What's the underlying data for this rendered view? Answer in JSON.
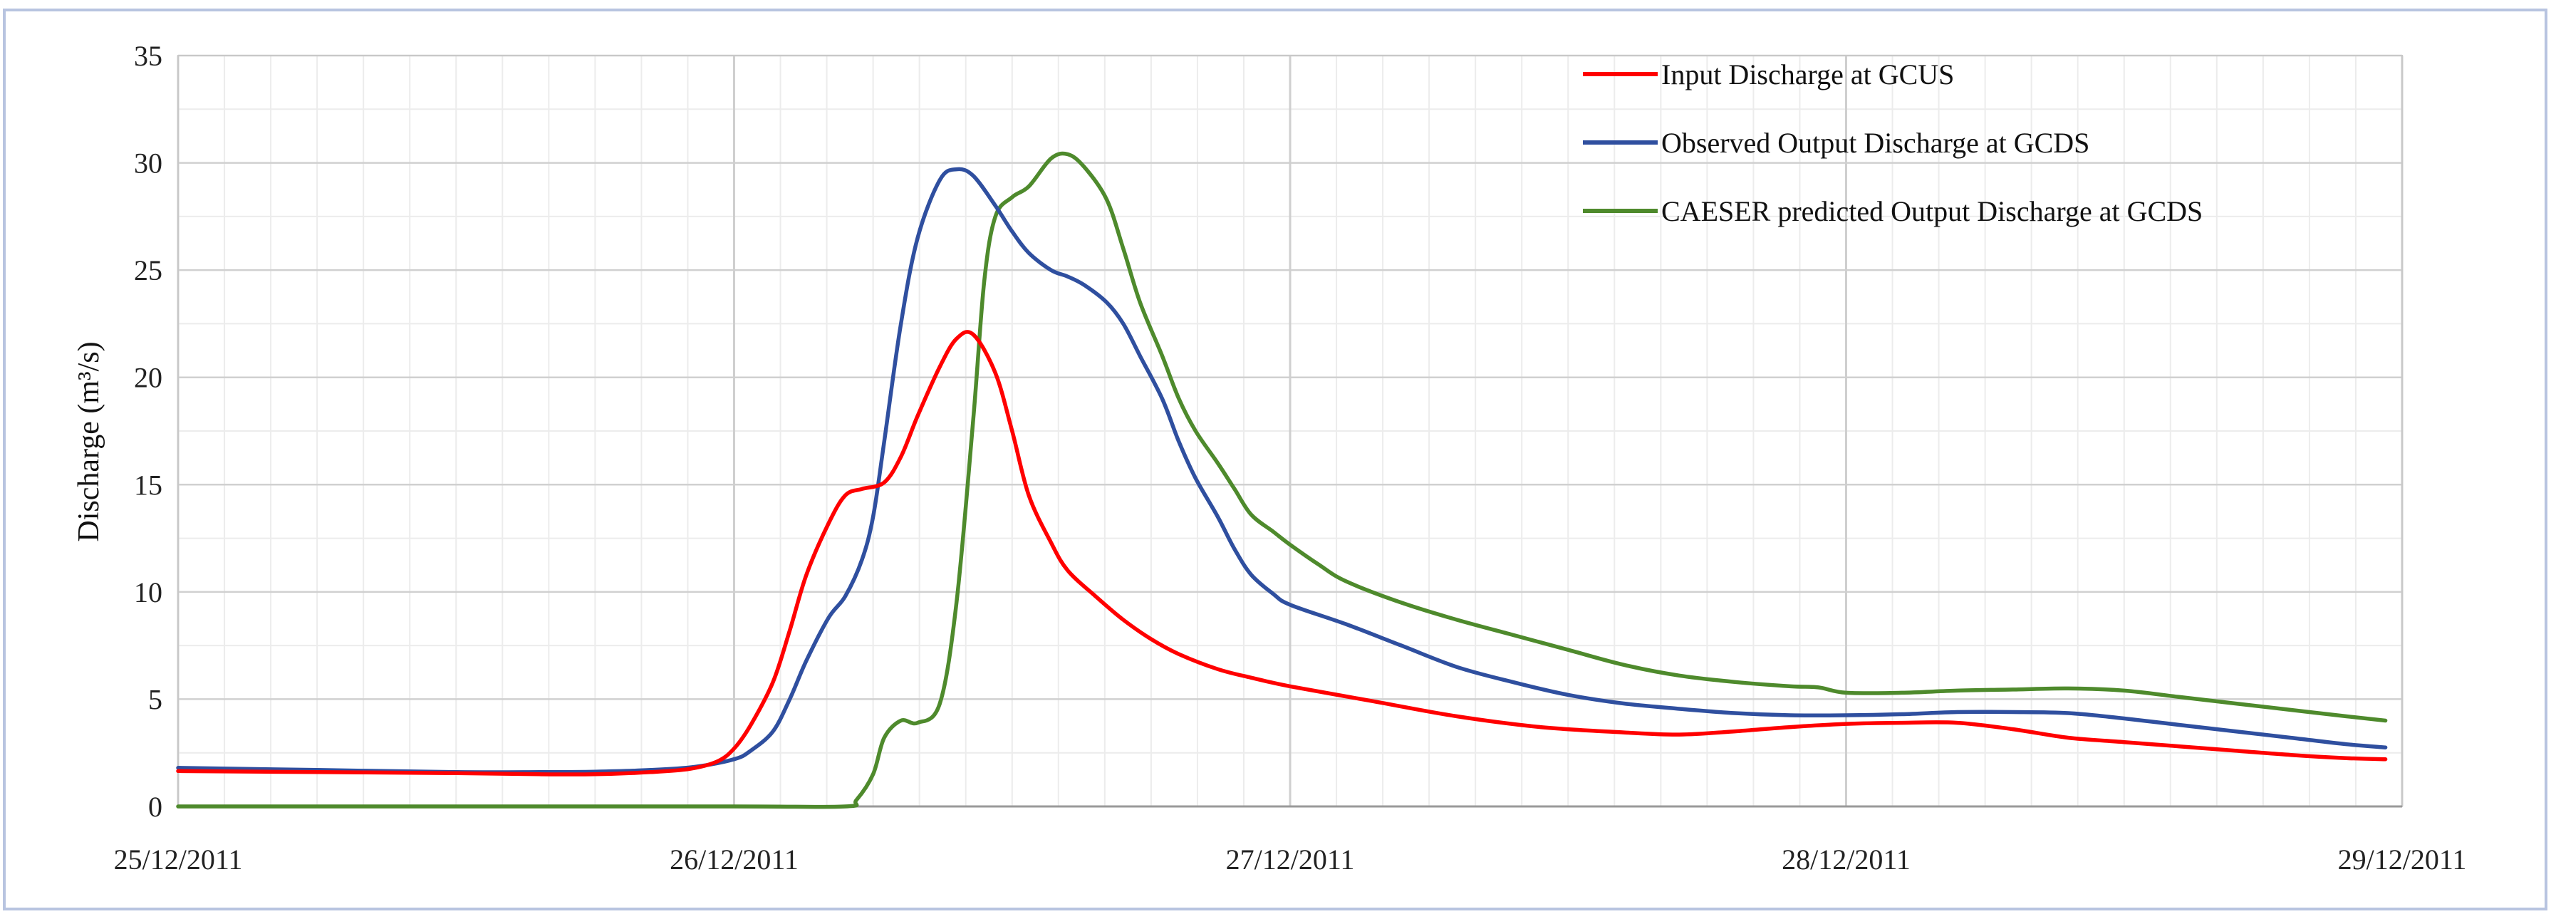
{
  "chart_data": {
    "type": "line",
    "title": "",
    "xlabel": "",
    "ylabel": "Discharge (m³/s)",
    "ylim": [
      0,
      35
    ],
    "yticks": [
      0,
      5,
      10,
      15,
      20,
      25,
      30,
      35
    ],
    "xlim": [
      0,
      4
    ],
    "xticks": [
      0,
      1,
      2,
      3,
      4
    ],
    "xtick_labels": [
      "25/12/2011",
      "26/12/2011",
      "27/12/2011",
      "28/12/2011",
      "29/12/2011"
    ],
    "x_unit": "days after 25/12/2011 00:00",
    "grid": true,
    "legend_position": "top-right",
    "series": [
      {
        "name": "Input Discharge at GCUS",
        "color": "#ff0000",
        "points": [
          [
            0.0,
            1.65
          ],
          [
            0.25,
            1.6
          ],
          [
            0.5,
            1.55
          ],
          [
            0.65,
            1.5
          ],
          [
            0.75,
            1.5
          ],
          [
            0.85,
            1.6
          ],
          [
            0.92,
            1.75
          ],
          [
            0.97,
            2.1
          ],
          [
            1.0,
            2.7
          ],
          [
            1.03,
            3.8
          ],
          [
            1.07,
            5.8
          ],
          [
            1.1,
            8.2
          ],
          [
            1.13,
            10.8
          ],
          [
            1.17,
            13.2
          ],
          [
            1.2,
            14.5
          ],
          [
            1.23,
            14.8
          ],
          [
            1.27,
            15.1
          ],
          [
            1.3,
            16.3
          ],
          [
            1.33,
            18.2
          ],
          [
            1.37,
            20.5
          ],
          [
            1.4,
            21.8
          ],
          [
            1.43,
            22.0
          ],
          [
            1.47,
            20.2
          ],
          [
            1.5,
            17.5
          ],
          [
            1.53,
            14.5
          ],
          [
            1.57,
            12.3
          ],
          [
            1.6,
            11.0
          ],
          [
            1.65,
            9.8
          ],
          [
            1.7,
            8.7
          ],
          [
            1.75,
            7.8
          ],
          [
            1.8,
            7.1
          ],
          [
            1.87,
            6.4
          ],
          [
            1.93,
            6.0
          ],
          [
            2.0,
            5.6
          ],
          [
            2.15,
            4.9
          ],
          [
            2.3,
            4.2
          ],
          [
            2.45,
            3.7
          ],
          [
            2.6,
            3.45
          ],
          [
            2.7,
            3.35
          ],
          [
            2.8,
            3.5
          ],
          [
            2.9,
            3.7
          ],
          [
            3.0,
            3.85
          ],
          [
            3.1,
            3.9
          ],
          [
            3.2,
            3.9
          ],
          [
            3.3,
            3.6
          ],
          [
            3.4,
            3.2
          ],
          [
            3.5,
            3.0
          ],
          [
            3.6,
            2.8
          ],
          [
            3.7,
            2.6
          ],
          [
            3.8,
            2.4
          ],
          [
            3.9,
            2.25
          ],
          [
            3.97,
            2.2
          ]
        ]
      },
      {
        "name": "Observed Output Discharge at GCDS",
        "color": "#2f4f9f",
        "points": [
          [
            0.0,
            1.8
          ],
          [
            0.25,
            1.7
          ],
          [
            0.5,
            1.6
          ],
          [
            0.65,
            1.6
          ],
          [
            0.75,
            1.62
          ],
          [
            0.85,
            1.7
          ],
          [
            0.93,
            1.85
          ],
          [
            1.0,
            2.2
          ],
          [
            1.03,
            2.6
          ],
          [
            1.07,
            3.5
          ],
          [
            1.1,
            5.0
          ],
          [
            1.13,
            6.8
          ],
          [
            1.17,
            8.8
          ],
          [
            1.2,
            9.8
          ],
          [
            1.23,
            11.5
          ],
          [
            1.25,
            13.5
          ],
          [
            1.27,
            17.0
          ],
          [
            1.3,
            22.5
          ],
          [
            1.33,
            26.5
          ],
          [
            1.37,
            29.2
          ],
          [
            1.4,
            29.7
          ],
          [
            1.43,
            29.4
          ],
          [
            1.47,
            28.0
          ],
          [
            1.5,
            26.8
          ],
          [
            1.53,
            25.8
          ],
          [
            1.57,
            25.0
          ],
          [
            1.6,
            24.7
          ],
          [
            1.63,
            24.3
          ],
          [
            1.67,
            23.5
          ],
          [
            1.7,
            22.5
          ],
          [
            1.73,
            21.0
          ],
          [
            1.77,
            19.0
          ],
          [
            1.8,
            17.0
          ],
          [
            1.83,
            15.3
          ],
          [
            1.87,
            13.5
          ],
          [
            1.9,
            12.0
          ],
          [
            1.93,
            10.8
          ],
          [
            1.97,
            9.9
          ],
          [
            2.0,
            9.4
          ],
          [
            2.1,
            8.5
          ],
          [
            2.2,
            7.5
          ],
          [
            2.3,
            6.5
          ],
          [
            2.4,
            5.8
          ],
          [
            2.5,
            5.2
          ],
          [
            2.6,
            4.8
          ],
          [
            2.7,
            4.55
          ],
          [
            2.8,
            4.35
          ],
          [
            2.9,
            4.25
          ],
          [
            3.0,
            4.25
          ],
          [
            3.1,
            4.3
          ],
          [
            3.2,
            4.4
          ],
          [
            3.3,
            4.4
          ],
          [
            3.4,
            4.35
          ],
          [
            3.5,
            4.1
          ],
          [
            3.6,
            3.8
          ],
          [
            3.7,
            3.5
          ],
          [
            3.8,
            3.2
          ],
          [
            3.9,
            2.9
          ],
          [
            3.97,
            2.75
          ]
        ]
      },
      {
        "name": "CAESER predicted Output Discharge at GCDS",
        "color": "#4e8a2c",
        "points": [
          [
            0.0,
            0.0
          ],
          [
            0.5,
            0.0
          ],
          [
            1.0,
            0.0
          ],
          [
            1.2,
            0.0
          ],
          [
            1.22,
            0.3
          ],
          [
            1.25,
            1.5
          ],
          [
            1.27,
            3.2
          ],
          [
            1.3,
            4.0
          ],
          [
            1.33,
            3.9
          ],
          [
            1.37,
            4.8
          ],
          [
            1.4,
            9.5
          ],
          [
            1.43,
            18.0
          ],
          [
            1.45,
            24.5
          ],
          [
            1.47,
            27.5
          ],
          [
            1.5,
            28.4
          ],
          [
            1.53,
            28.9
          ],
          [
            1.57,
            30.2
          ],
          [
            1.6,
            30.4
          ],
          [
            1.63,
            29.8
          ],
          [
            1.67,
            28.3
          ],
          [
            1.7,
            26.0
          ],
          [
            1.73,
            23.5
          ],
          [
            1.77,
            21.0
          ],
          [
            1.8,
            19.0
          ],
          [
            1.83,
            17.5
          ],
          [
            1.87,
            16.0
          ],
          [
            1.9,
            14.8
          ],
          [
            1.93,
            13.6
          ],
          [
            1.97,
            12.8
          ],
          [
            2.0,
            12.2
          ],
          [
            2.05,
            11.3
          ],
          [
            2.1,
            10.5
          ],
          [
            2.2,
            9.5
          ],
          [
            2.3,
            8.7
          ],
          [
            2.4,
            8.0
          ],
          [
            2.5,
            7.3
          ],
          [
            2.6,
            6.6
          ],
          [
            2.7,
            6.1
          ],
          [
            2.8,
            5.8
          ],
          [
            2.9,
            5.6
          ],
          [
            2.95,
            5.55
          ],
          [
            3.0,
            5.3
          ],
          [
            3.1,
            5.3
          ],
          [
            3.2,
            5.4
          ],
          [
            3.3,
            5.45
          ],
          [
            3.4,
            5.5
          ],
          [
            3.5,
            5.4
          ],
          [
            3.6,
            5.1
          ],
          [
            3.7,
            4.8
          ],
          [
            3.8,
            4.5
          ],
          [
            3.9,
            4.2
          ],
          [
            3.97,
            4.0
          ]
        ]
      }
    ]
  }
}
